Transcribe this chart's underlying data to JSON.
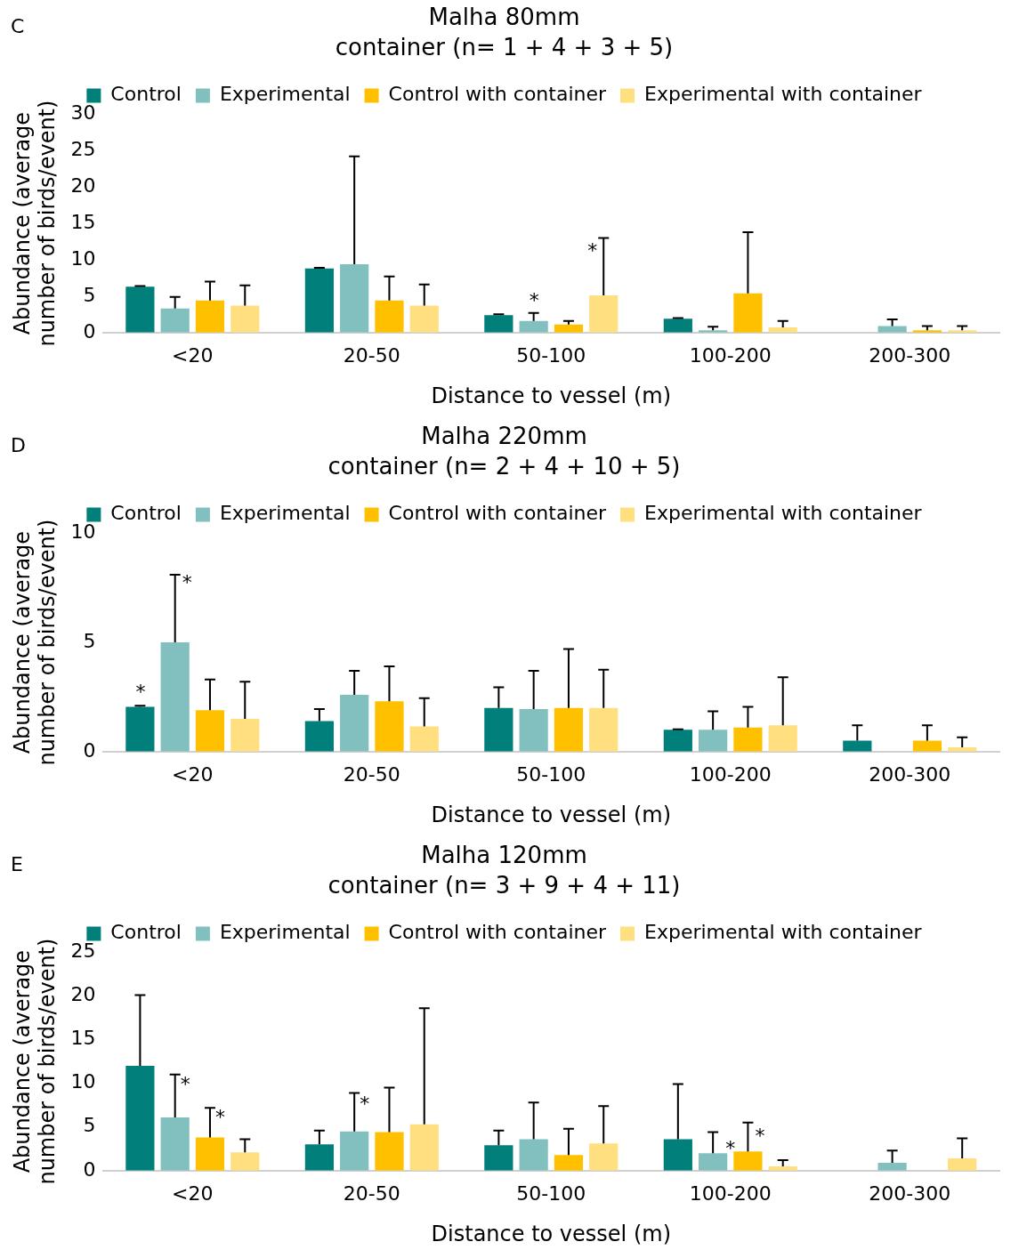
{
  "chart_data": [
    {
      "type": "bar",
      "title": "Malha 80mm",
      "subtitle": "container (n= 1 + 4 + 3 + 5)",
      "xlabel": "Distance to vessel (m)",
      "ylabel": "Abundance (average number of birds/event)",
      "categories": [
        "<20",
        "20-50",
        "50-100",
        "100-200",
        "200-300"
      ],
      "series": [
        {
          "name": "Control",
          "color": "#007f7b",
          "values": [
            6.3,
            8.8,
            2.4,
            1.9,
            null
          ],
          "errors": [
            [
              6.3,
              6.4
            ],
            [
              8.8,
              8.9
            ],
            [
              2.4,
              2.5
            ],
            [
              1.9,
              2.0
            ],
            null
          ]
        },
        {
          "name": "Experimental",
          "color": "#82c0bf",
          "values": [
            3.3,
            9.4,
            1.6,
            0.3,
            0.9
          ],
          "errors": [
            [
              3.3,
              4.9
            ],
            [
              9.4,
              24.2
            ],
            [
              1.6,
              2.7
            ],
            [
              0.3,
              0.8
            ],
            [
              0.9,
              1.8
            ]
          ]
        },
        {
          "name": "Control with container",
          "color": "#ffc000",
          "values": [
            4.4,
            4.4,
            1.1,
            5.4,
            0.3
          ],
          "errors": [
            [
              4.4,
              7.0
            ],
            [
              4.4,
              7.7
            ],
            [
              1.1,
              1.6
            ],
            [
              5.4,
              13.8
            ],
            [
              0.3,
              0.9
            ]
          ]
        },
        {
          "name": "Experimental with container",
          "color": "#ffdf80",
          "values": [
            3.7,
            3.7,
            5.1,
            0.7,
            0.3
          ],
          "errors": [
            [
              3.7,
              6.5
            ],
            [
              3.7,
              6.6
            ],
            [
              5.1,
              13.0
            ],
            [
              0.7,
              1.6
            ],
            [
              0.3,
              0.9
            ]
          ]
        }
      ],
      "ylim": [
        0,
        30
      ],
      "yticks": [
        0,
        5,
        10,
        15,
        20,
        25,
        30
      ],
      "grid": false,
      "legend": "top",
      "annotations": [
        "C",
        "*",
        "*"
      ]
    },
    {
      "type": "bar",
      "title": "Malha 220mm",
      "subtitle": "container (n= 2 + 4 + 10 + 5)",
      "xlabel": "Distance to vessel (m)",
      "ylabel": "Abundance (average number of birds/event)",
      "categories": [
        "<20",
        "20-50",
        "50-100",
        "100-200",
        "200-300"
      ],
      "series": [
        {
          "name": "Control",
          "color": "#007f7b",
          "values": [
            2.05,
            1.4,
            2.0,
            1.0,
            0.5
          ],
          "errors": [
            [
              2.05,
              2.1
            ],
            [
              1.4,
              1.95
            ],
            [
              2.0,
              2.95
            ],
            [
              1.0,
              1.02
            ],
            [
              0.5,
              1.2
            ]
          ]
        },
        {
          "name": "Experimental",
          "color": "#82c0bf",
          "values": [
            5.0,
            2.6,
            1.95,
            1.0,
            null
          ],
          "errors": [
            [
              5.0,
              8.1
            ],
            [
              2.6,
              3.7
            ],
            [
              1.95,
              3.7
            ],
            [
              1.0,
              1.85
            ],
            null
          ]
        },
        {
          "name": "Control with container",
          "color": "#ffc000",
          "values": [
            1.9,
            2.3,
            2.0,
            1.1,
            0.5
          ],
          "errors": [
            [
              1.9,
              3.3
            ],
            [
              2.3,
              3.9
            ],
            [
              2.0,
              4.7
            ],
            [
              1.1,
              2.05
            ],
            [
              0.5,
              1.2
            ]
          ]
        },
        {
          "name": "Experimental with container",
          "color": "#ffdf80",
          "values": [
            1.5,
            1.15,
            2.0,
            1.2,
            0.2
          ],
          "errors": [
            [
              1.5,
              3.2
            ],
            [
              1.15,
              2.45
            ],
            [
              2.0,
              3.75
            ],
            [
              1.2,
              3.4
            ],
            [
              0.2,
              0.65
            ]
          ]
        }
      ],
      "ylim": [
        0,
        10
      ],
      "yticks": [
        0,
        5,
        10
      ],
      "grid": false,
      "legend": "top",
      "annotations": [
        "D",
        "*",
        "*"
      ]
    },
    {
      "type": "bar",
      "title": "Malha 120mm",
      "subtitle": "container (n= 3 + 9 + 4 + 11)",
      "xlabel": "Distance to vessel (m)",
      "ylabel": "Abundance (average number of birds/event)",
      "categories": [
        "<20",
        "20-50",
        "50-100",
        "100-200",
        "200-300"
      ],
      "series": [
        {
          "name": "Control",
          "color": "#007f7b",
          "values": [
            12.0,
            3.0,
            2.9,
            3.6,
            null
          ],
          "errors": [
            [
              12.0,
              20.1
            ],
            [
              3.0,
              4.6
            ],
            [
              2.9,
              4.6
            ],
            [
              3.6,
              9.9
            ],
            null
          ]
        },
        {
          "name": "Experimental",
          "color": "#82c0bf",
          "values": [
            6.1,
            4.5,
            3.6,
            2.0,
            0.9
          ],
          "errors": [
            [
              6.1,
              11.0
            ],
            [
              4.5,
              8.9
            ],
            [
              3.6,
              7.8
            ],
            [
              2.0,
              4.4
            ],
            [
              0.9,
              2.3
            ]
          ]
        },
        {
          "name": "Control with container",
          "color": "#ffc000",
          "values": [
            3.8,
            4.4,
            1.8,
            2.2,
            null
          ],
          "errors": [
            [
              3.8,
              7.2
            ],
            [
              4.4,
              9.5
            ],
            [
              1.8,
              4.8
            ],
            [
              2.2,
              5.5
            ],
            null
          ]
        },
        {
          "name": "Experimental with container",
          "color": "#ffdf80",
          "values": [
            2.1,
            5.3,
            3.1,
            0.5,
            1.4
          ],
          "errors": [
            [
              2.1,
              3.6
            ],
            [
              5.3,
              18.6
            ],
            [
              3.1,
              7.4
            ],
            [
              0.5,
              1.2
            ],
            [
              1.4,
              3.7
            ]
          ]
        }
      ],
      "ylim": [
        0,
        25
      ],
      "yticks": [
        0,
        5,
        10,
        15,
        20,
        25
      ],
      "grid": false,
      "legend": "top",
      "annotations": [
        "E",
        "*",
        "*",
        "*",
        "*",
        "*"
      ]
    }
  ]
}
